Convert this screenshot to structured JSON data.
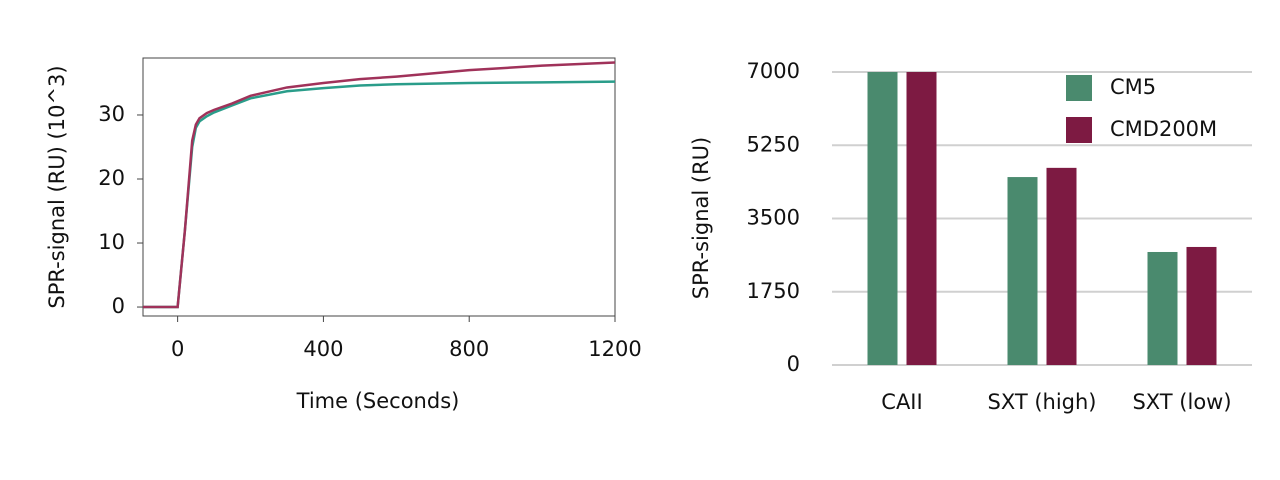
{
  "chart_data": [
    {
      "type": "line",
      "x_label": "Time (Seconds)",
      "y_label": "SPR-signal (RU) (10^3)",
      "x": [
        -95,
        0,
        20,
        40,
        50,
        60,
        80,
        100,
        150,
        200,
        300,
        400,
        500,
        600,
        800,
        1000,
        1200
      ],
      "series": [
        {
          "color": "#2a9d8a",
          "values": [
            0,
            0,
            12,
            25,
            28,
            29,
            29.8,
            30.4,
            31.5,
            32.6,
            33.7,
            34.2,
            34.6,
            34.8,
            35,
            35.1,
            35.2
          ]
        },
        {
          "color": "#a0325a",
          "values": [
            0,
            0,
            12,
            26,
            28.5,
            29.5,
            30.3,
            30.8,
            31.8,
            33,
            34.3,
            35,
            35.6,
            36,
            37,
            37.7,
            38.2
          ]
        }
      ],
      "xlim": [
        -95,
        1200
      ],
      "xticks": [
        0,
        400,
        800,
        1200
      ],
      "ylim": [
        -1.4,
        38.9
      ],
      "yticks": [
        0,
        10,
        20,
        30
      ]
    },
    {
      "type": "bar",
      "y_label": "SPR-signal (RU)",
      "categories": [
        "CAII",
        "SXT (high)",
        "SXT (low)"
      ],
      "series": [
        {
          "name": "CM5",
          "color": "#4a8a6e",
          "values": [
            7000,
            4490,
            2700
          ]
        },
        {
          "name": "CMD200M",
          "color": "#7d1a42",
          "values": [
            7000,
            4710,
            2820
          ]
        }
      ],
      "ylim": [
        0,
        7000
      ],
      "yticks": [
        0,
        1750,
        3500,
        5250,
        7000
      ],
      "grid": true,
      "legend": "top-right"
    }
  ]
}
